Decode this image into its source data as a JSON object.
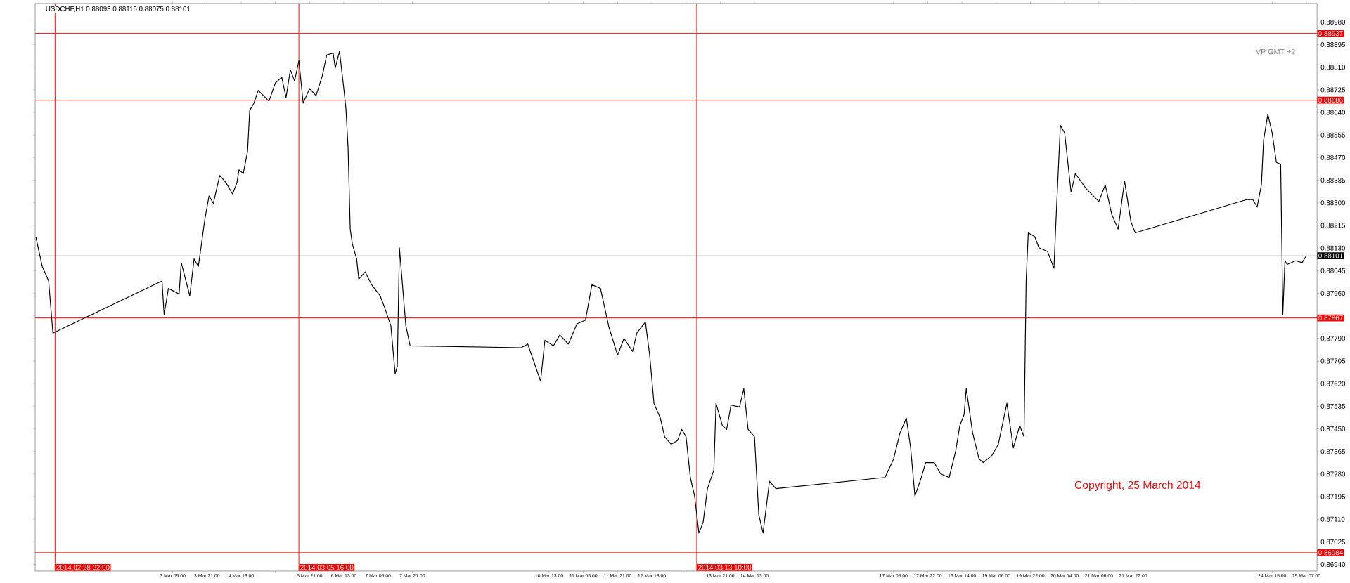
{
  "chart_data": {
    "type": "line",
    "title": "USDCHF,H1  0.88093 0.88116 0.88075 0.88101",
    "annotations": [
      "VP GMT +2",
      "Copyright, 25 March 2014"
    ],
    "x": [
      "2014-02-28T13:00",
      "2014-02-28T16:00",
      "2014-02-28T19:00",
      "2014-02-28T21:00",
      "2014-03-03T00:00",
      "2014-03-03T01:00",
      "2014-03-03T03:00",
      "2014-03-03T08:00",
      "2014-03-03T09:00",
      "2014-03-03T13:00",
      "2014-03-03T15:00",
      "2014-03-03T17:00",
      "2014-03-03T20:00",
      "2014-03-03T22:00",
      "2014-03-04T00:00",
      "2014-03-04T03:00",
      "2014-03-04T06:00",
      "2014-03-04T09:00",
      "2014-03-04T11:00",
      "2014-03-04T12:00",
      "2014-03-04T14:00",
      "2014-03-04T16:00",
      "2014-03-04T17:00",
      "2014-03-04T19:00",
      "2014-03-04T21:00",
      "2014-03-05T02:00",
      "2014-03-05T05:00",
      "2014-03-05T08:00",
      "2014-03-05T10:00",
      "2014-03-05T12:00",
      "2014-03-05T14:00",
      "2014-03-05T16:00",
      "2014-03-05T18:00",
      "2014-03-05T21:00",
      "2014-03-06T00:00",
      "2014-03-06T03:00",
      "2014-03-06T05:00",
      "2014-03-06T08:00",
      "2014-03-06T09:00",
      "2014-03-06T11:00",
      "2014-03-06T13:00",
      "2014-03-06T14:00",
      "2014-03-06T15:00",
      "2014-03-06T16:00",
      "2014-03-06T17:00",
      "2014-03-06T19:00",
      "2014-03-06T20:00",
      "2014-03-06T23:00",
      "2014-03-07T02:00",
      "2014-03-07T06:00",
      "2014-03-07T08:00",
      "2014-03-07T11:00",
      "2014-03-07T13:00",
      "2014-03-07T14:00",
      "2014-03-07T15:00",
      "2014-03-07T18:00",
      "2014-03-07T20:00",
      "2014-03-10T00:00",
      "2014-03-10T03:00",
      "2014-03-10T06:00",
      "2014-03-10T09:00",
      "2014-03-10T11:00",
      "2014-03-10T15:00",
      "2014-03-10T18:00",
      "2014-03-10T22:00",
      "2014-03-11T02:00",
      "2014-03-11T06:00",
      "2014-03-11T09:00",
      "2014-03-11T13:00",
      "2014-03-11T17:00",
      "2014-03-11T21:00",
      "2014-03-12T00:00",
      "2014-03-12T04:00",
      "2014-03-12T06:00",
      "2014-03-12T10:00",
      "2014-03-12T12:00",
      "2014-03-12T14:00",
      "2014-03-12T17:00",
      "2014-03-12T19:00",
      "2014-03-12T22:00",
      "2014-03-13T01:00",
      "2014-03-13T03:00",
      "2014-03-13T05:00",
      "2014-03-13T07:00",
      "2014-03-13T09:00",
      "2014-03-13T11:00",
      "2014-03-13T13:00",
      "2014-03-13T15:00",
      "2014-03-13T18:00",
      "2014-03-13T19:00",
      "2014-03-13T22:00",
      "2014-03-14T00:00",
      "2014-03-14T02:00",
      "2014-03-14T06:00",
      "2014-03-14T08:00",
      "2014-03-14T10:00",
      "2014-03-14T13:00",
      "2014-03-14T15:00",
      "2014-03-14T17:00",
      "2014-03-14T20:00",
      "2014-03-14T23:00",
      "2014-03-17T02:00",
      "2014-03-17T06:00",
      "2014-03-17T09:00",
      "2014-03-17T12:00",
      "2014-03-17T14:00",
      "2014-03-17T16:00",
      "2014-03-17T19:00",
      "2014-03-17T21:00",
      "2014-03-18T01:00",
      "2014-03-18T04:00",
      "2014-03-18T08:00",
      "2014-03-18T11:00",
      "2014-03-18T13:00",
      "2014-03-18T15:00",
      "2014-03-18T16:00",
      "2014-03-18T19:00",
      "2014-03-18T22:00",
      "2014-03-19T00:00",
      "2014-03-19T04:00",
      "2014-03-19T07:00",
      "2014-03-19T11:00",
      "2014-03-19T14:00",
      "2014-03-19T17:00",
      "2014-03-19T19:00",
      "2014-03-19T20:00",
      "2014-03-19T21:00",
      "2014-03-20T00:00",
      "2014-03-20T02:00",
      "2014-03-20T06:00",
      "2014-03-20T09:00",
      "2014-03-20T10:00",
      "2014-03-20T12:00",
      "2014-03-20T14:00",
      "2014-03-20T17:00",
      "2014-03-20T19:00",
      "2014-03-21T00:00",
      "2014-03-21T06:00",
      "2014-03-21T09:00",
      "2014-03-21T12:00",
      "2014-03-21T15:00",
      "2014-03-21T18:00",
      "2014-03-21T21:00",
      "2014-03-21T23:00",
      "2014-03-24T03:00",
      "2014-03-24T06:00",
      "2014-03-24T08:00",
      "2014-03-24T10:00",
      "2014-03-24T11:00",
      "2014-03-24T13:00",
      "2014-03-24T15:00",
      "2014-03-24T17:00",
      "2014-03-24T19:00",
      "2014-03-24T20:00",
      "2014-03-24T21:00",
      "2014-03-24T22:00",
      "2014-03-25T02:00",
      "2014-03-25T05:00",
      "2014-03-25T07:00"
    ],
    "series": [
      {
        "color": "#000000",
        "values": [
          0.88173,
          0.88061,
          0.88006,
          0.8781,
          0.88006,
          0.8788,
          0.87978,
          0.87957,
          0.88075,
          0.8795,
          0.88089,
          0.88061,
          0.88236,
          0.88326,
          0.88298,
          0.88403,
          0.88375,
          0.88333,
          0.88375,
          0.88424,
          0.8841,
          0.88493,
          0.88647,
          0.88675,
          0.88723,
          0.88682,
          0.88751,
          0.88772,
          0.88696,
          0.888,
          0.88758,
          0.88835,
          0.88675,
          0.8873,
          0.88703,
          0.88779,
          0.88856,
          0.88863,
          0.88807,
          0.8887,
          0.8873,
          0.88654,
          0.88507,
          0.88201,
          0.88145,
          0.88089,
          0.88013,
          0.8804,
          0.87992,
          0.8795,
          0.87908,
          0.87838,
          0.87657,
          0.87685,
          0.88131,
          0.87838,
          0.87762,
          0.87755,
          0.87769,
          0.87699,
          0.87629,
          0.87783,
          0.87762,
          0.87803,
          0.87769,
          0.87845,
          0.87859,
          0.87992,
          0.87978,
          0.87831,
          0.87727,
          0.8779,
          0.87741,
          0.8781,
          0.87852,
          0.87727,
          0.87546,
          0.8749,
          0.8742,
          0.87392,
          0.87406,
          0.87448,
          0.8742,
          0.87267,
          0.87197,
          0.87058,
          0.87099,
          0.87225,
          0.87295,
          0.87546,
          0.87462,
          0.87448,
          0.87539,
          0.87532,
          0.87601,
          0.87448,
          0.8742,
          0.87127,
          0.87058,
          0.87253,
          0.87225,
          0.87267,
          0.87336,
          0.87434,
          0.8749,
          0.87378,
          0.87197,
          0.87267,
          0.87323,
          0.87323,
          0.87281,
          0.87267,
          0.87364,
          0.87462,
          0.87504,
          0.87601,
          0.87434,
          0.87336,
          0.87323,
          0.8735,
          0.87392,
          0.87546,
          0.87378,
          0.87462,
          0.8742,
          0.88006,
          0.88187,
          0.88173,
          0.88131,
          0.88117,
          0.88054,
          0.88243,
          0.88591,
          0.88563,
          0.8834,
          0.8841,
          0.88354,
          0.88305,
          0.88368,
          0.88257,
          0.88201,
          0.88382,
          0.88229,
          0.88187,
          0.88312,
          0.88312,
          0.88284,
          0.88368,
          0.88535,
          0.88633,
          0.88563,
          0.88452,
          0.88445,
          0.8788,
          0.88082,
          0.88068,
          0.88082,
          0.88075,
          0.88101
        ]
      }
    ],
    "xlim": [
      "2014-02-28T12:42",
      "2014-03-25T12:00"
    ],
    "ylim": [
      0.86915,
      0.8905
    ],
    "xticks": [
      {
        "value": "2014-03-03T05:00",
        "label": "3 Mar 05:00"
      },
      {
        "value": "2014-03-03T21:00",
        "label": "3 Mar 21:00"
      },
      {
        "value": "2014-03-04T13:00",
        "label": "4 Mar 13:00"
      },
      {
        "value": "2014-03-05T05:00",
        "label": null
      },
      {
        "value": "2014-03-05T21:00",
        "label": "5 Mar 21:00"
      },
      {
        "value": "2014-03-06T13:00",
        "label": "6 Mar 13:00"
      },
      {
        "value": "2014-03-07T05:00",
        "label": "7 Mar 05:00"
      },
      {
        "value": "2014-03-07T21:00",
        "label": "7 Mar 21:00"
      },
      {
        "value": "2014-03-10T13:00",
        "label": "10 Mar 13:00"
      },
      {
        "value": "2014-03-11T05:00",
        "label": "11 Mar 05:00"
      },
      {
        "value": "2014-03-11T21:00",
        "label": "11 Mar 21:00"
      },
      {
        "value": "2014-03-12T13:00",
        "label": "12 Mar 13:00"
      },
      {
        "value": "2014-03-13T05:00",
        "label": null
      },
      {
        "value": "2014-03-13T21:00",
        "label": "13 Mar 21:00"
      },
      {
        "value": "2014-03-14T13:00",
        "label": "14 Mar 13:00"
      },
      {
        "value": "2014-03-17T06:00",
        "label": "17 Mar 06:00"
      },
      {
        "value": "2014-03-17T22:00",
        "label": "17 Mar 22:00"
      },
      {
        "value": "2014-03-18T14:00",
        "label": "18 Mar 14:00"
      },
      {
        "value": "2014-03-19T06:00",
        "label": "19 Mar 06:00"
      },
      {
        "value": "2014-03-19T22:00",
        "label": "19 Mar 22:00"
      },
      {
        "value": "2014-03-20T14:00",
        "label": "20 Mar 14:00"
      },
      {
        "value": "2014-03-21T06:00",
        "label": "21 Mar 06:00"
      },
      {
        "value": "2014-03-21T22:00",
        "label": "21 Mar 22:00"
      },
      {
        "value": "2014-03-24T15:00",
        "label": "24 Mar 15:00"
      },
      {
        "value": "2014-03-25T07:00",
        "label": "25 Mar 07:00"
      }
    ],
    "yticks": [
      {
        "value": 0.8694,
        "label": "0.86940"
      },
      {
        "value": 0.87025,
        "label": "0.87025"
      },
      {
        "value": 0.8711,
        "label": "0.87110"
      },
      {
        "value": 0.87195,
        "label": "0.87195"
      },
      {
        "value": 0.8728,
        "label": "0.87280"
      },
      {
        "value": 0.87365,
        "label": "0.87365"
      },
      {
        "value": 0.8745,
        "label": "0.87450"
      },
      {
        "value": 0.87535,
        "label": "0.87535"
      },
      {
        "value": 0.8762,
        "label": "0.87620"
      },
      {
        "value": 0.87705,
        "label": "0.87705"
      },
      {
        "value": 0.8779,
        "label": "0.87790"
      },
      {
        "value": 0.87875,
        "label": null
      },
      {
        "value": 0.8796,
        "label": "0.87960"
      },
      {
        "value": 0.88045,
        "label": "0.88045"
      },
      {
        "value": 0.8813,
        "label": "0.88130"
      },
      {
        "value": 0.88215,
        "label": "0.88215"
      },
      {
        "value": 0.883,
        "label": "0.88300"
      },
      {
        "value": 0.88385,
        "label": "0.88385"
      },
      {
        "value": 0.8847,
        "label": "0.88470"
      },
      {
        "value": 0.88555,
        "label": "0.88555"
      },
      {
        "value": 0.8864,
        "label": "0.88640"
      },
      {
        "value": 0.88725,
        "label": "0.88725"
      },
      {
        "value": 0.8881,
        "label": "0.88810"
      },
      {
        "value": 0.88895,
        "label": "0.88895"
      },
      {
        "value": 0.8898,
        "label": "0.88980"
      }
    ],
    "ref_lines": [
      {
        "axis": "y",
        "value": 0.88937,
        "label": "0.88937",
        "color": "#ff0000"
      },
      {
        "axis": "y",
        "value": 0.88686,
        "label": "0.88686",
        "color": "#ff0000"
      },
      {
        "axis": "y",
        "value": 0.87867,
        "label": "0.87867",
        "color": "#ff0000"
      },
      {
        "axis": "y",
        "value": 0.86984,
        "label": "0.86984",
        "color": "#ff0000"
      },
      {
        "axis": "y",
        "value": 0.88101,
        "label": "0.88101",
        "color": "#c0c0c0"
      },
      {
        "axis": "x",
        "value": "2014-02-28T22:00",
        "label": "2014.02.28 22:00",
        "color": "#ff0000"
      },
      {
        "axis": "x",
        "value": "2014-03-05T16:00",
        "label": "2014.03.05 16:00",
        "color": "#ff0000"
      },
      {
        "axis": "x",
        "value": "2014-03-13T10:00",
        "label": "2014.03.13 10:00",
        "color": "#ff0000"
      }
    ],
    "marker": "none",
    "line_style": "solid"
  }
}
